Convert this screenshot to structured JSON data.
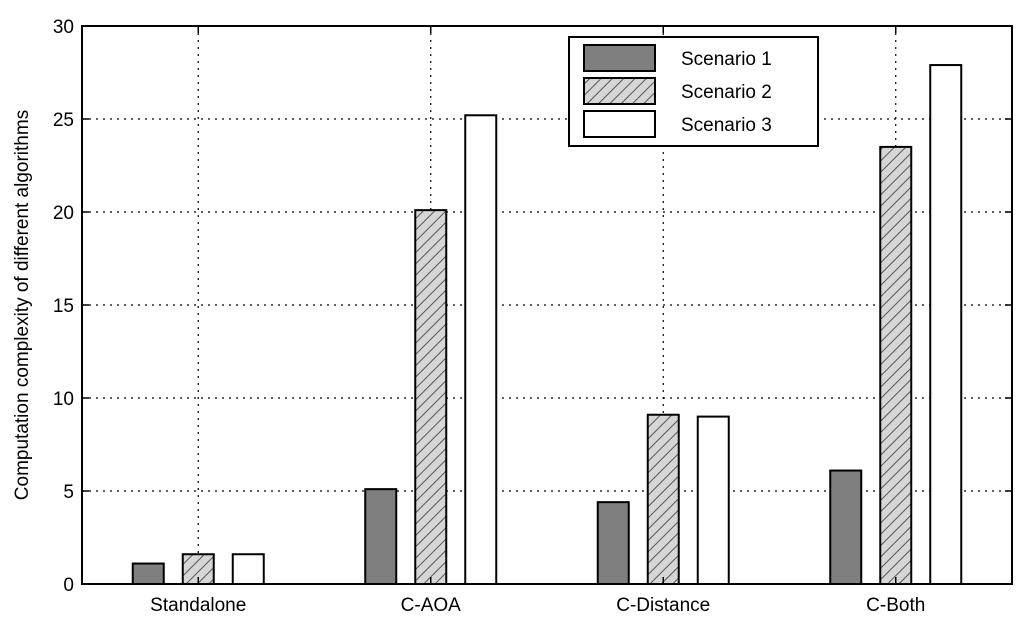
{
  "chart_data": {
    "type": "bar",
    "title": "",
    "xlabel": "",
    "ylabel": "Computation complexity of different algorithms",
    "categories": [
      "Standalone",
      "C-AOA",
      "C-Distance",
      "C-Both"
    ],
    "ylim": [
      0,
      30
    ],
    "yticks": [
      "0",
      "5",
      "10",
      "15",
      "20",
      "25",
      "30"
    ],
    "grid": true,
    "legend_position": "top-right",
    "series": [
      {
        "name": "Scenario 1",
        "values": [
          1.1,
          5.1,
          4.4,
          6.1
        ],
        "color": "#7f7f7f",
        "pattern": "solid"
      },
      {
        "name": "Scenario 2",
        "values": [
          1.6,
          20.1,
          9.1,
          23.5
        ],
        "color": "#cfcfcf",
        "pattern": "hatch"
      },
      {
        "name": "Scenario 3",
        "values": [
          1.6,
          25.2,
          9.0,
          27.9
        ],
        "color": "#ffffff",
        "pattern": "solid"
      }
    ]
  }
}
